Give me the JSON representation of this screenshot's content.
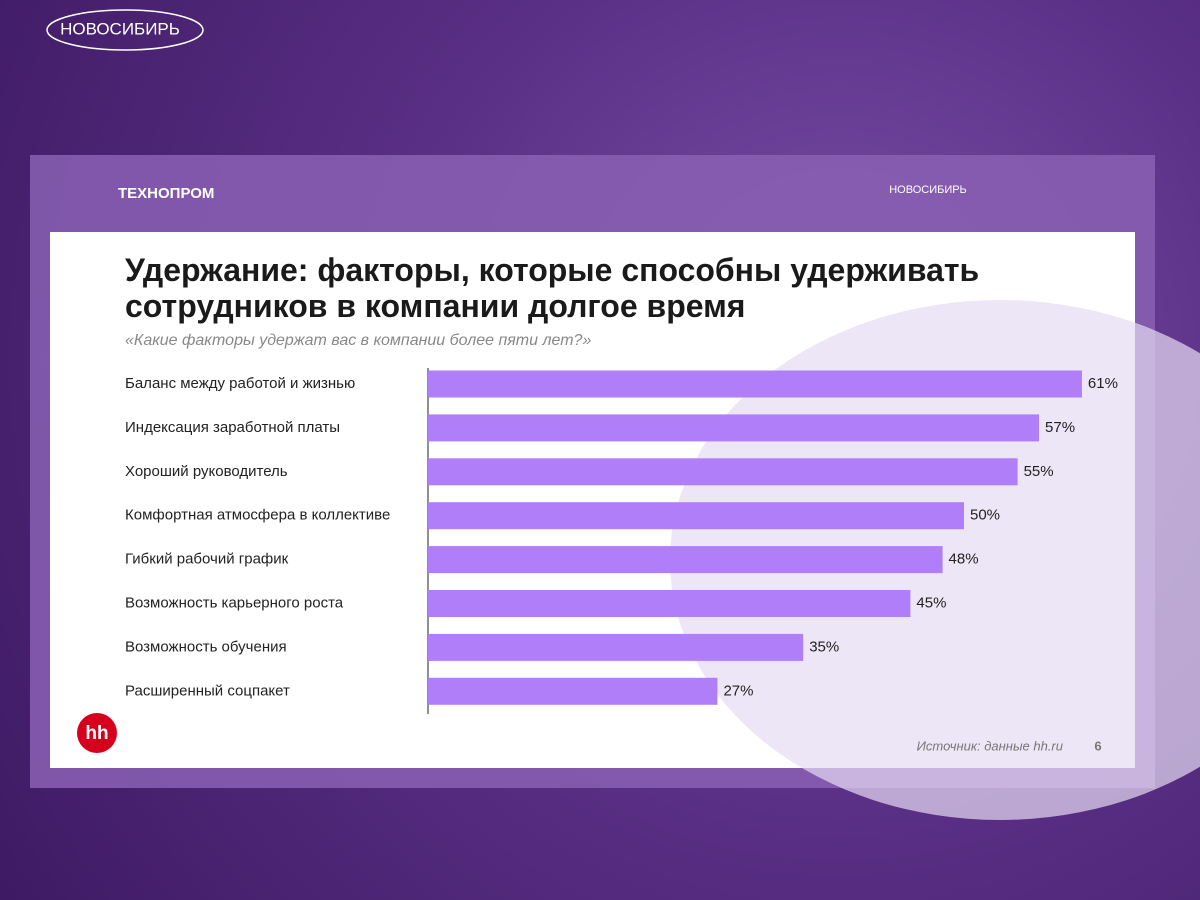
{
  "chart_data": {
    "type": "bar",
    "orientation": "horizontal",
    "title": "Удержание: факторы, которые способны удерживать сотрудников в компании долгое время",
    "subtitle": "«Какие факторы удержат вас в компании более пяти лет?»",
    "categories": [
      "Баланс между работой и жизнью",
      "Индексация заработной платы",
      "Хороший руководитель",
      "Комфортная атмосфера в коллективе",
      "Гибкий рабочий график",
      "Возможность карьерного роста",
      "Возможность обучения",
      "Расширенный соцпакет"
    ],
    "values": [
      61,
      57,
      55,
      50,
      48,
      45,
      35,
      27
    ],
    "value_labels": [
      "61%",
      "57%",
      "55%",
      "50%",
      "48%",
      "45%",
      "35%",
      "27%"
    ],
    "color": "#b07ef8"
  },
  "slide": {
    "top_logo": "НОВОСИБИРЬ",
    "forum_logo": "ТЕХНОПРОМ",
    "partner_logo": "НОВОСИБИРЬ",
    "brand": "hh",
    "source": "Источник: данные hh.ru",
    "page_number": "6"
  }
}
